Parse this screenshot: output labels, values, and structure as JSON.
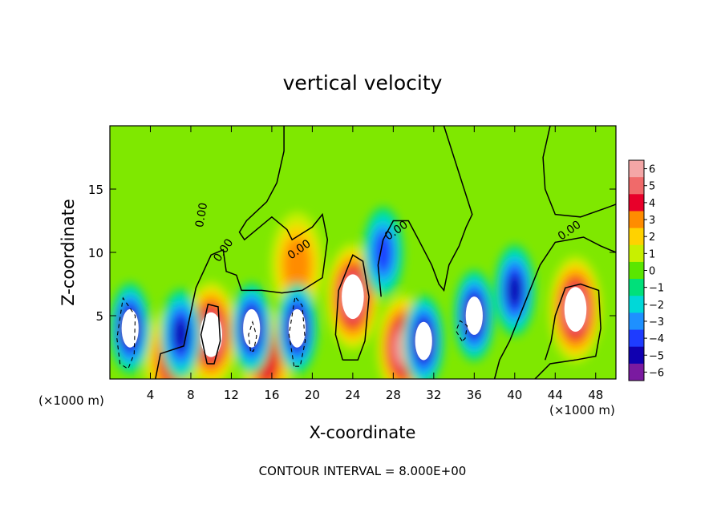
{
  "chart_data": {
    "type": "heatmap",
    "title": "vertical velocity",
    "xlabel": "X-coordinate",
    "ylabel": "Z-coordinate",
    "x_unit_left": "(×1000 m)",
    "x_unit_right": "(×1000 m)",
    "xlim": [
      0,
      50
    ],
    "ylim": [
      0,
      20
    ],
    "x_ticks": [
      4,
      8,
      12,
      16,
      20,
      24,
      28,
      32,
      36,
      40,
      44,
      48
    ],
    "y_ticks": [
      5,
      10,
      15
    ],
    "colorbar": {
      "levels": [
        6,
        5,
        4,
        3,
        2,
        1,
        0,
        -1,
        -2,
        -3,
        -4,
        -5,
        -6
      ],
      "labels": [
        "6",
        "5",
        "4",
        "3",
        "2",
        "1",
        "0",
        "−1",
        "−2",
        "−3",
        "−4",
        "−5",
        "−6"
      ],
      "colors": [
        "#f4a6a6",
        "#f06a6a",
        "#e8002a",
        "#ff8c00",
        "#ffd200",
        "#c8f000",
        "#5ae600",
        "#00e07a",
        "#00d8d8",
        "#1e90ff",
        "#1e3cff",
        "#1000b0",
        "#7a1aa0"
      ]
    },
    "contour_labels": [
      "0.00",
      "0.00",
      "0.00",
      "0.00",
      "0.00"
    ],
    "footer": "CONTOUR INTERVAL = 8.000E+00",
    "updrafts": [
      {
        "x": 10,
        "z": 3.5,
        "peak": 8
      },
      {
        "x": 24,
        "z": 6.5,
        "peak": 10
      },
      {
        "x": 29,
        "z": 2.5,
        "peak": 6
      },
      {
        "x": 46,
        "z": 5.5,
        "peak": 9
      },
      {
        "x": 18.5,
        "z": 9,
        "peak": 3
      },
      {
        "x": 6,
        "z": 1.5,
        "peak": 4
      },
      {
        "x": 15.5,
        "z": 1.5,
        "peak": 4
      }
    ],
    "downdrafts": [
      {
        "x": 2,
        "z": 4,
        "peak": -8
      },
      {
        "x": 14,
        "z": 4,
        "peak": -7
      },
      {
        "x": 18.5,
        "z": 4,
        "peak": -8
      },
      {
        "x": 31,
        "z": 3,
        "peak": -7
      },
      {
        "x": 36,
        "z": 5,
        "peak": -8
      },
      {
        "x": 40,
        "z": 7,
        "peak": -5
      },
      {
        "x": 7,
        "z": 3.5,
        "peak": -5
      },
      {
        "x": 27,
        "z": 10,
        "peak": -4
      }
    ]
  }
}
